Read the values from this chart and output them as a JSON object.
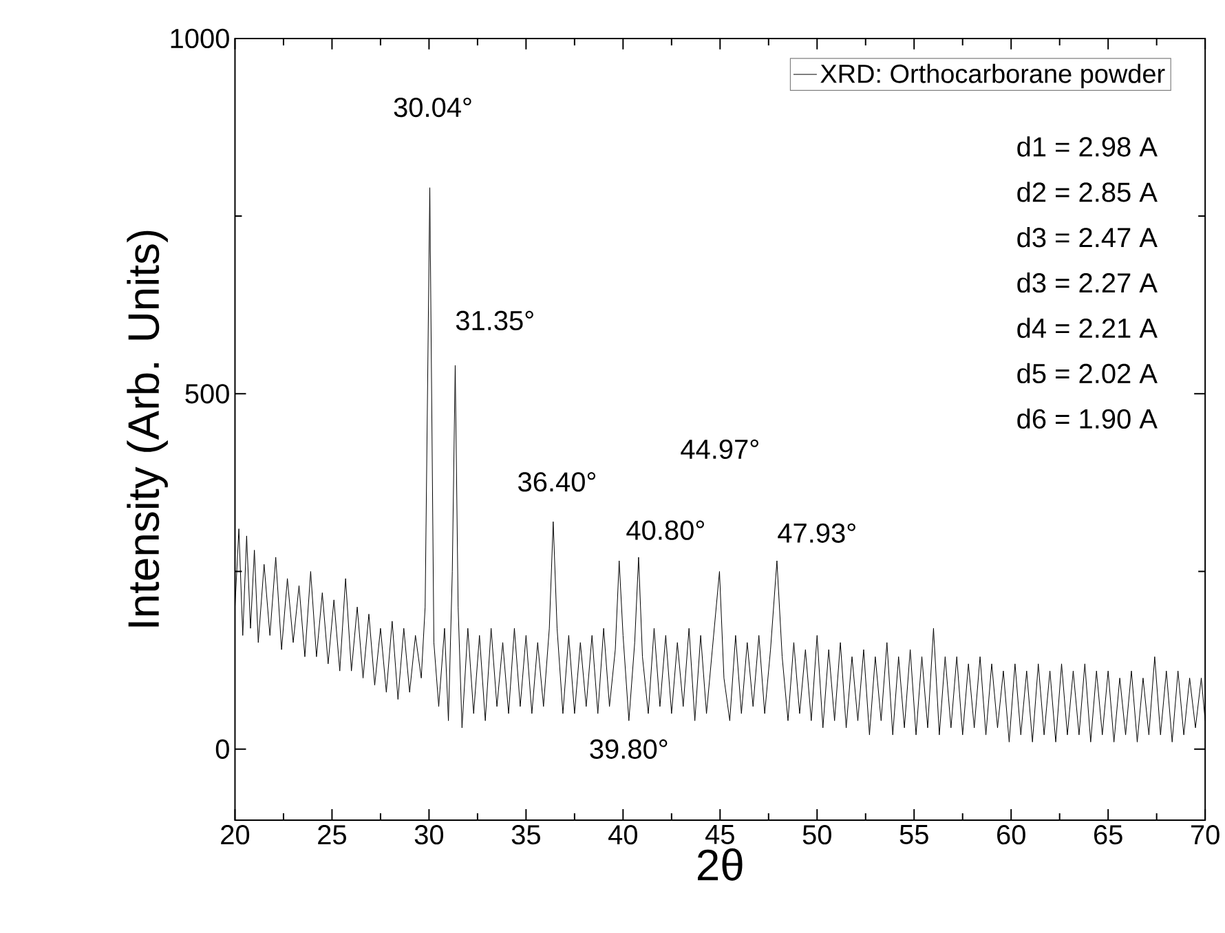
{
  "chart_data": {
    "type": "line",
    "xlabel": "2θ",
    "ylabel": "Intensity (Arb. Units)",
    "x": [
      20.0,
      20.2,
      20.4,
      20.6,
      20.8,
      21.0,
      21.2,
      21.5,
      21.8,
      22.1,
      22.4,
      22.7,
      23.0,
      23.3,
      23.6,
      23.9,
      24.2,
      24.5,
      24.8,
      25.1,
      25.4,
      25.7,
      26.0,
      26.3,
      26.6,
      26.9,
      27.2,
      27.5,
      27.8,
      28.1,
      28.4,
      28.7,
      29.0,
      29.3,
      29.6,
      29.8,
      30.04,
      30.25,
      30.5,
      30.8,
      31.0,
      31.2,
      31.35,
      31.5,
      31.7,
      32.0,
      32.3,
      32.6,
      32.9,
      33.2,
      33.5,
      33.8,
      34.1,
      34.4,
      34.7,
      35.0,
      35.3,
      35.6,
      35.9,
      36.2,
      36.4,
      36.6,
      36.9,
      37.2,
      37.5,
      37.8,
      38.1,
      38.4,
      38.7,
      39.0,
      39.3,
      39.6,
      39.8,
      40.0,
      40.3,
      40.6,
      40.8,
      41.0,
      41.3,
      41.6,
      41.9,
      42.2,
      42.5,
      42.8,
      43.1,
      43.4,
      43.7,
      44.0,
      44.3,
      44.6,
      44.97,
      45.2,
      45.5,
      45.8,
      46.1,
      46.4,
      46.7,
      47.0,
      47.3,
      47.6,
      47.93,
      48.2,
      48.5,
      48.8,
      49.1,
      49.4,
      49.7,
      50.0,
      50.3,
      50.6,
      50.9,
      51.2,
      51.5,
      51.8,
      52.1,
      52.4,
      52.7,
      53.0,
      53.3,
      53.6,
      53.9,
      54.2,
      54.5,
      54.8,
      55.1,
      55.4,
      55.7,
      56.0,
      56.3,
      56.6,
      56.9,
      57.2,
      57.5,
      57.8,
      58.1,
      58.4,
      58.7,
      59.0,
      59.3,
      59.6,
      59.9,
      60.2,
      60.5,
      60.8,
      61.1,
      61.4,
      61.7,
      62.0,
      62.3,
      62.6,
      62.9,
      63.2,
      63.5,
      63.8,
      64.1,
      64.4,
      64.7,
      65.0,
      65.3,
      65.6,
      65.9,
      66.2,
      66.5,
      66.8,
      67.1,
      67.4,
      67.7,
      68.0,
      68.3,
      68.6,
      68.9,
      69.2,
      69.5,
      69.8,
      70.0
    ],
    "series": [
      {
        "name": "XRD: Orthocarborane powder",
        "color": "#000000",
        "values": [
          200,
          310,
          160,
          300,
          170,
          280,
          150,
          260,
          160,
          270,
          140,
          240,
          150,
          230,
          130,
          250,
          130,
          220,
          120,
          210,
          110,
          240,
          110,
          200,
          100,
          190,
          90,
          170,
          80,
          180,
          70,
          170,
          80,
          160,
          100,
          200,
          790,
          150,
          60,
          170,
          40,
          250,
          540,
          200,
          30,
          170,
          50,
          160,
          40,
          170,
          60,
          150,
          50,
          170,
          60,
          160,
          50,
          150,
          60,
          170,
          320,
          170,
          50,
          160,
          50,
          150,
          60,
          160,
          50,
          170,
          60,
          140,
          265,
          160,
          40,
          150,
          270,
          130,
          50,
          170,
          60,
          160,
          50,
          150,
          60,
          170,
          40,
          160,
          50,
          140,
          250,
          100,
          40,
          160,
          50,
          150,
          60,
          160,
          50,
          140,
          265,
          130,
          40,
          150,
          50,
          140,
          40,
          160,
          30,
          140,
          40,
          150,
          30,
          130,
          40,
          140,
          20,
          130,
          40,
          150,
          20,
          130,
          30,
          140,
          20,
          130,
          30,
          170,
          20,
          130,
          30,
          130,
          20,
          120,
          30,
          130,
          20,
          120,
          30,
          110,
          10,
          120,
          20,
          110,
          10,
          120,
          20,
          110,
          10,
          120,
          20,
          110,
          20,
          120,
          10,
          110,
          20,
          110,
          10,
          100,
          20,
          110,
          10,
          100,
          20,
          130,
          20,
          110,
          10,
          110,
          20,
          100,
          30,
          100,
          40
        ]
      }
    ],
    "xlim": [
      20,
      70
    ],
    "ylim": [
      -100,
      1000
    ],
    "xticks": [
      20,
      25,
      30,
      35,
      40,
      45,
      50,
      55,
      60,
      65,
      70
    ],
    "yticks": [
      0,
      500,
      1000
    ],
    "legend": "top right",
    "line_style": "solid",
    "marker": "none",
    "annotations": [
      "30.04°",
      "31.35°",
      "36.40°",
      "44.97°",
      "40.80°",
      "47.93°",
      "39.80°",
      "d1 = 2.98 A",
      "d2 = 2.85 A",
      "d3 = 2.47 A",
      "d3 = 2.27 A",
      "d4 = 2.21 A",
      "d5 = 2.02 A",
      "d6 = 1.90 A"
    ]
  }
}
